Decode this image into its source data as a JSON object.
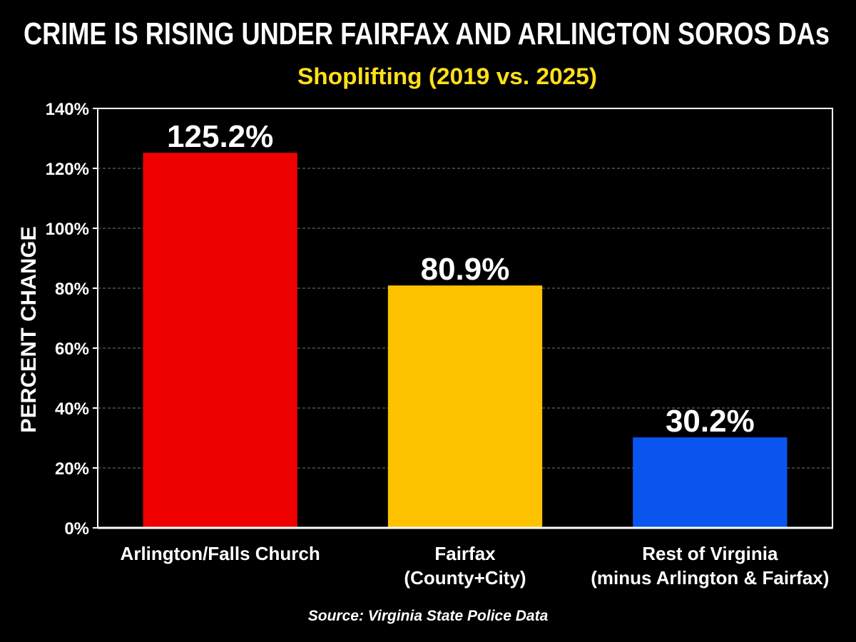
{
  "chart_data": {
    "type": "bar",
    "title": "CRIME IS RISING UNDER FAIRFAX AND ARLINGTON SOROS DAs",
    "subtitle": "Shoplifting (2019 vs. 2025)",
    "y_label": "PERCENT CHANGE",
    "source": "Source: Virginia State Police Data",
    "categories": [
      "Arlington/Falls Church",
      "Fairfax\n(County+City)",
      "Rest of Virginia\n(minus Arlington & Fairfax)"
    ],
    "values": [
      125.2,
      80.9,
      30.2
    ],
    "value_labels": [
      "125.2%",
      "80.9%",
      "30.2%"
    ],
    "colors": [
      "#ee0000",
      "#ffc200",
      "#0a55f0"
    ],
    "ylim": [
      0,
      140
    ],
    "yticks": [
      {
        "value": 0,
        "label": "0%"
      },
      {
        "value": 20,
        "label": "20%"
      },
      {
        "value": 40,
        "label": "40%"
      },
      {
        "value": 60,
        "label": "60%"
      },
      {
        "value": 80,
        "label": "80%"
      },
      {
        "value": 100,
        "label": "100%"
      },
      {
        "value": 120,
        "label": "120%"
      },
      {
        "value": 140,
        "label": "140%"
      }
    ],
    "grid": true
  }
}
